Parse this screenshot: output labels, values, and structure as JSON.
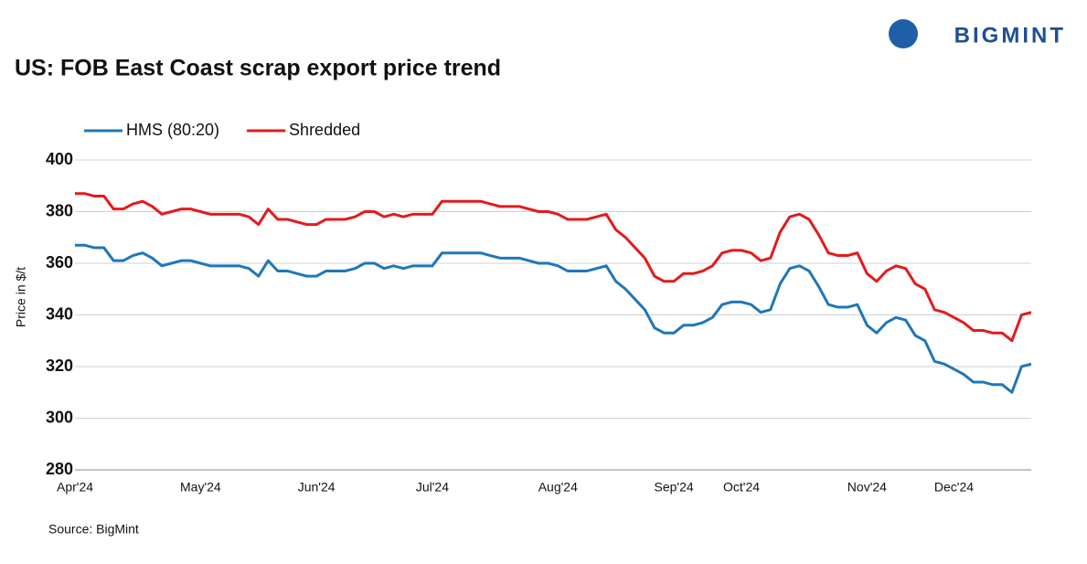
{
  "brand": "BIGMINT",
  "chart_data": {
    "type": "line",
    "title": "US: FOB East Coast scrap export price trend",
    "y_label": "Price in $/t",
    "source": "Source: BigMint",
    "categories": [
      "Apr'24",
      null,
      null,
      null,
      null,
      null,
      null,
      null,
      null,
      null,
      null,
      null,
      null,
      "May'24",
      null,
      null,
      null,
      null,
      null,
      null,
      null,
      null,
      null,
      null,
      null,
      "Jun'24",
      null,
      null,
      null,
      null,
      null,
      null,
      null,
      null,
      null,
      null,
      null,
      "Jul'24",
      null,
      null,
      null,
      null,
      null,
      null,
      null,
      null,
      null,
      null,
      null,
      null,
      "Aug'24",
      null,
      null,
      null,
      null,
      null,
      null,
      null,
      null,
      null,
      null,
      null,
      "Sep'24",
      null,
      null,
      null,
      null,
      null,
      null,
      "Oct'24",
      null,
      null,
      null,
      null,
      null,
      null,
      null,
      null,
      null,
      null,
      null,
      null,
      "Nov'24",
      null,
      null,
      null,
      null,
      null,
      null,
      null,
      null,
      "Dec'24",
      null,
      null,
      null,
      null,
      null,
      null,
      null,
      null
    ],
    "series": [
      {
        "name": "HMS (80:20)",
        "color": "#1f77b8",
        "values": [
          367,
          367,
          366,
          366,
          361,
          361,
          363,
          364,
          362,
          359,
          360,
          361,
          361,
          360,
          359,
          359,
          359,
          359,
          358,
          355,
          361,
          357,
          357,
          356,
          355,
          355,
          357,
          357,
          357,
          358,
          360,
          360,
          358,
          359,
          358,
          359,
          359,
          359,
          364,
          364,
          364,
          364,
          364,
          363,
          362,
          362,
          362,
          361,
          360,
          360,
          359,
          357,
          357,
          357,
          358,
          359,
          353,
          350,
          346,
          342,
          335,
          333,
          333,
          336,
          336,
          337,
          339,
          344,
          345,
          345,
          344,
          341,
          342,
          352,
          358,
          359,
          357,
          351,
          344,
          343,
          343,
          344,
          336,
          333,
          337,
          339,
          338,
          332,
          330,
          322,
          321,
          319,
          317,
          314,
          314,
          313,
          313,
          310,
          320,
          321
        ]
      },
      {
        "name": "Shredded",
        "color": "#e31a1c",
        "values": [
          387,
          387,
          386,
          386,
          381,
          381,
          383,
          384,
          382,
          379,
          380,
          381,
          381,
          380,
          379,
          379,
          379,
          379,
          378,
          375,
          381,
          377,
          377,
          376,
          375,
          375,
          377,
          377,
          377,
          378,
          380,
          380,
          378,
          379,
          378,
          379,
          379,
          379,
          384,
          384,
          384,
          384,
          384,
          383,
          382,
          382,
          382,
          381,
          380,
          380,
          379,
          377,
          377,
          377,
          378,
          379,
          373,
          370,
          366,
          362,
          355,
          353,
          353,
          356,
          356,
          357,
          359,
          364,
          365,
          365,
          364,
          361,
          362,
          372,
          378,
          379,
          377,
          371,
          364,
          363,
          363,
          364,
          356,
          353,
          357,
          359,
          358,
          352,
          350,
          342,
          341,
          339,
          337,
          334,
          334,
          333,
          333,
          330,
          340,
          341
        ]
      }
    ],
    "ylim": [
      280,
      400
    ],
    "yticks": [
      280,
      300,
      320,
      340,
      360,
      380,
      400
    ],
    "grid": true,
    "legend": "top-left"
  }
}
